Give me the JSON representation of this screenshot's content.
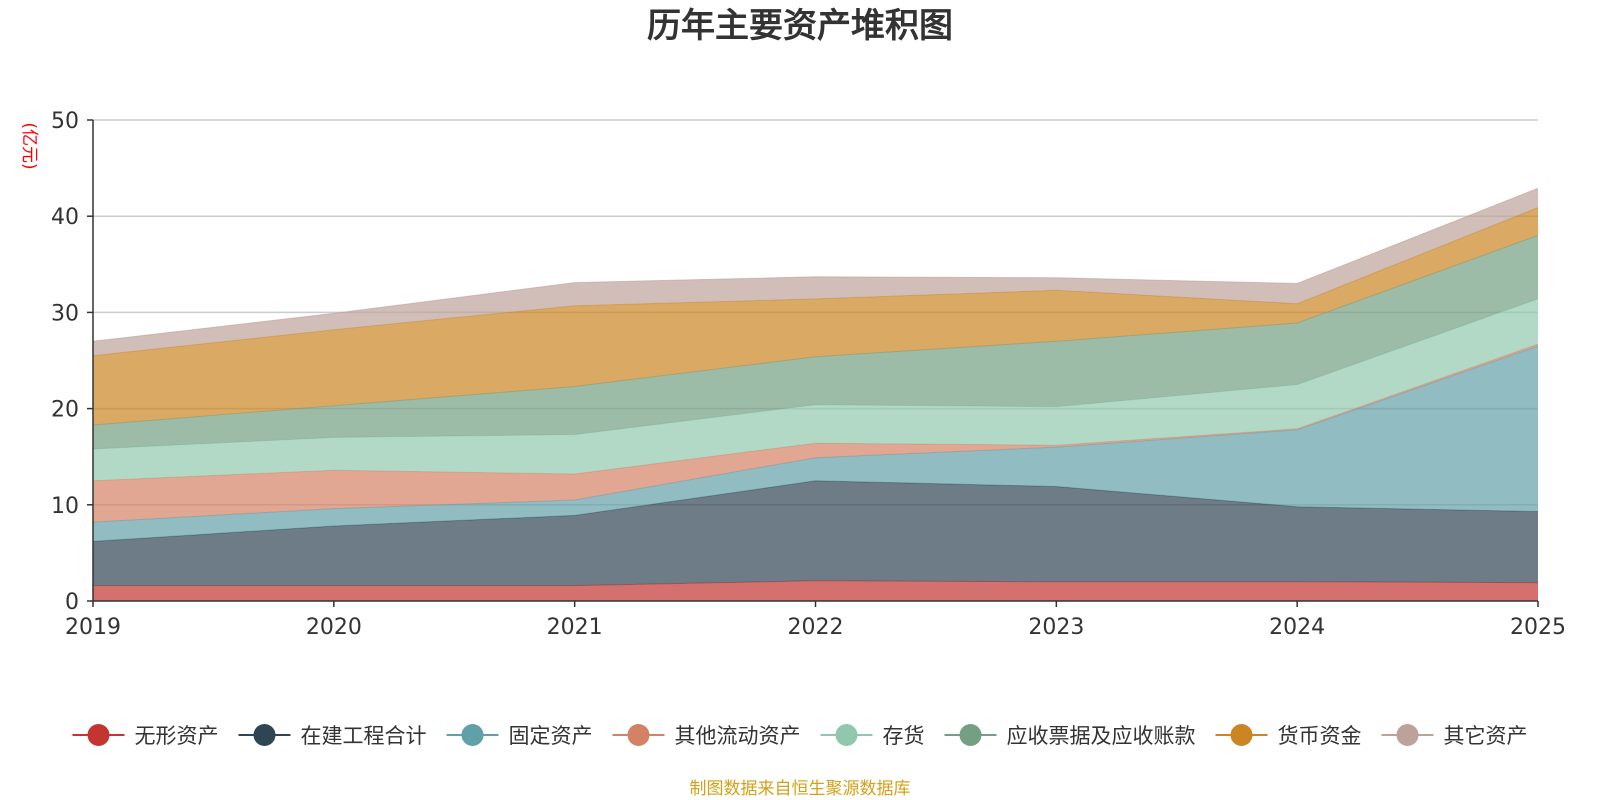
{
  "chart_data": {
    "type": "area",
    "stacked": true,
    "title": "历年主要资产堆积图",
    "ylabel": "(亿元)",
    "xlabel": "",
    "ylim": [
      0,
      50
    ],
    "yticks": [
      0,
      10,
      20,
      30,
      40,
      50
    ],
    "grid": true,
    "legend_position": "bottom",
    "categories": [
      "2019",
      "2020",
      "2021",
      "2022",
      "2023",
      "2024",
      "2025"
    ],
    "series": [
      {
        "name": "无形资产",
        "color": "#c23531",
        "values": [
          1.6,
          1.6,
          1.6,
          2.1,
          2.0,
          2.0,
          1.9
        ]
      },
      {
        "name": "在建工程合计",
        "color": "#2f4554",
        "values": [
          4.6,
          6.2,
          7.3,
          10.4,
          9.9,
          7.8,
          7.4
        ]
      },
      {
        "name": "固定资产",
        "color": "#61a0a8",
        "values": [
          2.0,
          1.8,
          1.6,
          2.4,
          4.1,
          8.0,
          17.2
        ]
      },
      {
        "name": "其他流动资产",
        "color": "#d48265",
        "values": [
          4.3,
          4.0,
          2.7,
          1.5,
          0.2,
          0.1,
          0.2
        ]
      },
      {
        "name": "存货",
        "color": "#91c7ae",
        "values": [
          3.3,
          3.4,
          4.1,
          4.0,
          4.0,
          4.6,
          4.7
        ]
      },
      {
        "name": "应收票据及应收账款",
        "color": "#749f83",
        "values": [
          2.5,
          3.3,
          5.0,
          5.0,
          6.8,
          6.4,
          6.6
        ]
      },
      {
        "name": "货币资金",
        "color": "#ca8622",
        "values": [
          7.2,
          7.9,
          8.4,
          6.0,
          5.3,
          2.0,
          2.9
        ]
      },
      {
        "name": "其它资产",
        "color": "#bda29a",
        "values": [
          1.5,
          1.7,
          2.4,
          2.3,
          1.3,
          2.1,
          2.0
        ]
      }
    ],
    "source_note": "制图数据来自恒生聚源数据库",
    "colors": {
      "title": "#333333",
      "unit": "#ff0000",
      "source": "#d4a017",
      "axis": "#333333",
      "grid": "#cccccc"
    }
  }
}
